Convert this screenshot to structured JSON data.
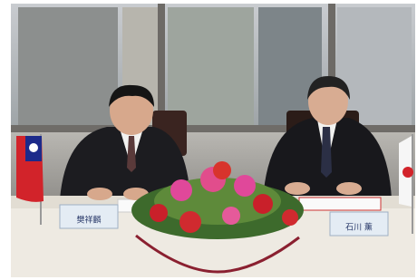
{
  "nameplates": [
    {
      "name": "樊祥麟"
    },
    {
      "name": "石川 薰"
    }
  ]
}
